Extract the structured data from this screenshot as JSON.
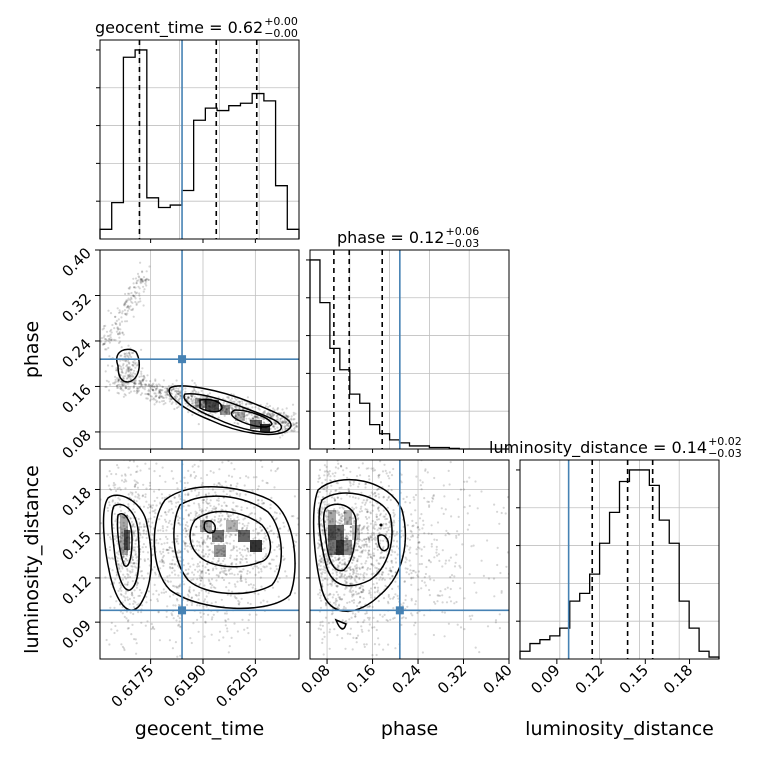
{
  "chart_data": {
    "type": "corner",
    "parameters": [
      "geocent_time",
      "phase",
      "luminosity_distance"
    ],
    "truths": {
      "geocent_time": 0.6184,
      "phase": 0.208,
      "luminosity_distance": 0.098
    },
    "colors": {
      "truth": "#4682b4",
      "hist": "#000000",
      "grid": "#c0c0c0",
      "axes": "#000000",
      "density": "#000000"
    },
    "titles": {
      "geocent_time": {
        "label": "geocent_time = 0.62",
        "plus": "+0.00",
        "minus": "−0.00"
      },
      "phase": {
        "label": "phase = 0.12",
        "plus": "+0.06",
        "minus": "−0.03"
      },
      "luminosity_distance": {
        "label": "luminosity_distance = 0.14",
        "plus": "+0.02",
        "minus": "−0.03"
      }
    },
    "ranges": {
      "geocent_time": [
        0.61605,
        0.62175
      ],
      "phase": [
        0.05,
        0.4
      ],
      "luminosity_distance": [
        0.065,
        0.2
      ]
    },
    "ticks": {
      "geocent_time": {
        "values": [
          0.6175,
          0.619,
          0.6205
        ],
        "labels": [
          "0.6175",
          "0.6190",
          "0.6205"
        ]
      },
      "phase": {
        "values": [
          0.08,
          0.16,
          0.24,
          0.32,
          0.4
        ],
        "labels": [
          "0.08",
          "0.16",
          "0.24",
          "0.32",
          "0.40"
        ]
      },
      "luminosity_distance": {
        "values": [
          0.09,
          0.12,
          0.15,
          0.18
        ],
        "labels": [
          "0.09",
          "0.12",
          "0.15",
          "0.18"
        ]
      }
    },
    "axis_labels": {
      "geocent_time": "geocent_time",
      "phase": "phase",
      "luminosity_distance": "luminosity_distance"
    },
    "quantiles": {
      "geocent_time": [
        0.61718,
        0.61938,
        0.62054
      ],
      "phase": [
        0.092,
        0.119,
        0.177
      ],
      "luminosity_distance": [
        0.114,
        0.138,
        0.155
      ]
    },
    "histograms": {
      "geocent_time": [
        4,
        15,
        75,
        78,
        17,
        13,
        14,
        20,
        49,
        54,
        53,
        55,
        56,
        60,
        57,
        22,
        4
      ],
      "phase": [
        62,
        48,
        33,
        26,
        18,
        15,
        8,
        5,
        3,
        2,
        1,
        1,
        0.5,
        0.5,
        0.2,
        0,
        0,
        0,
        0,
        0
      ],
      "luminosity_distance": [
        2,
        4,
        5,
        6,
        8,
        15,
        17,
        22,
        30,
        38,
        46,
        49,
        49,
        45,
        36,
        30,
        15,
        8,
        2,
        0.5
      ]
    },
    "grid": true
  }
}
